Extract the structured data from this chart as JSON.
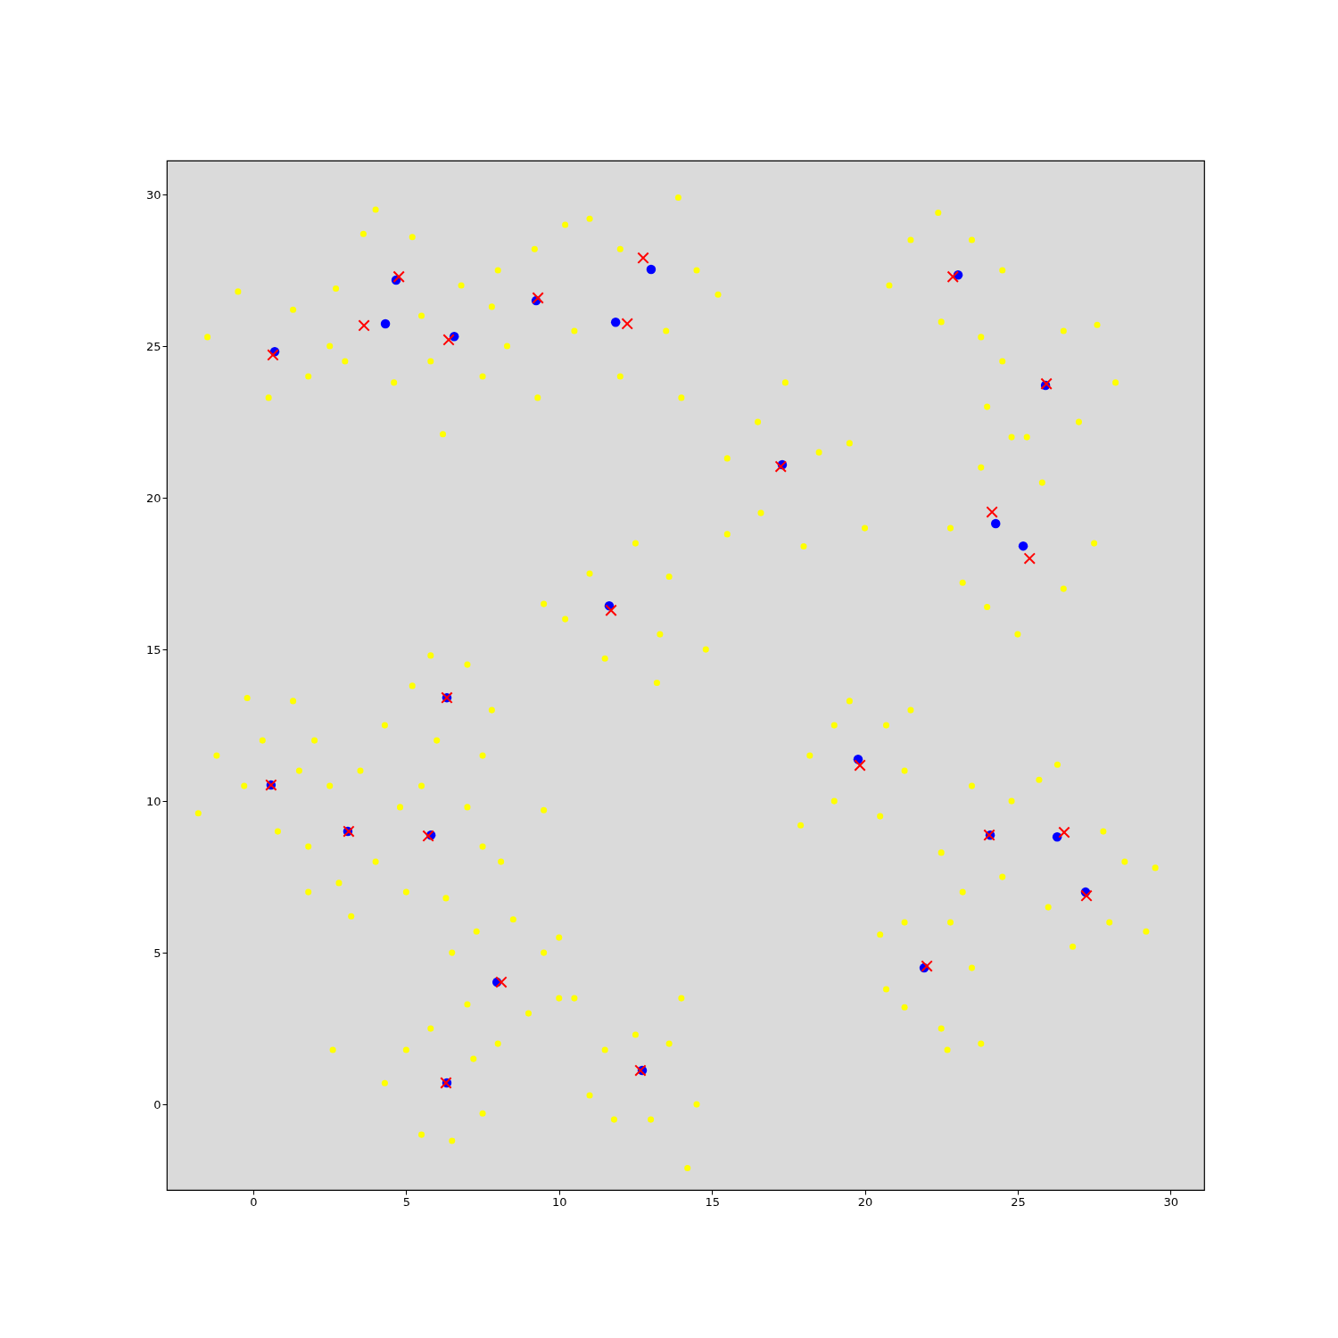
{
  "chart_data": {
    "type": "scatter",
    "xlim": [
      -2.83,
      31.1
    ],
    "ylim": [
      -2.82,
      31.12
    ],
    "xticks": [
      0,
      5,
      10,
      15,
      20,
      25,
      30
    ],
    "yticks": [
      0,
      5,
      10,
      15,
      20,
      25,
      30
    ],
    "grid": false,
    "series": [
      {
        "color": "#ffff00",
        "marker": "circle",
        "x": [
          -1.5,
          -0.5,
          0.5,
          1.8,
          1.3,
          2.5,
          2.7,
          3.6,
          4.0,
          5.2,
          3.0,
          5.5,
          4.6,
          6.2,
          7.5,
          6.8,
          7.8,
          5.8,
          8.0,
          9.2,
          10.2,
          9.3,
          10.5,
          8.3,
          11.0,
          12.0,
          13.9,
          14.5,
          12.0,
          13.5,
          15.2,
          14.0,
          21.5,
          22.4,
          23.5,
          24.5,
          22.5,
          23.8,
          20.8,
          24.5,
          26.5,
          27.6,
          27.0,
          25.3,
          24.0,
          28.2,
          15.5,
          16.5,
          17.4,
          16.6,
          18.5,
          19.5,
          20.0,
          15.5,
          18.0,
          22.8,
          23.8,
          24.8,
          23.2,
          25.0,
          26.5,
          27.5,
          25.8,
          24.0,
          10.2,
          11.0,
          12.5,
          13.6,
          13.3,
          11.5,
          14.8,
          13.2,
          9.5,
          5.2,
          5.8,
          7.0,
          7.8,
          6.0,
          7.5,
          4.3,
          -1.8,
          -1.2,
          -0.3,
          0.3,
          1.5,
          2.0,
          0.8,
          -0.2,
          1.3,
          1.8,
          2.5,
          3.5,
          4.0,
          2.8,
          3.2,
          1.8,
          4.8,
          5.5,
          7.0,
          7.5,
          5.0,
          6.3,
          8.1,
          9.5,
          18.2,
          19.0,
          19.5,
          20.7,
          21.3,
          20.5,
          19.0,
          17.9,
          21.5,
          22.5,
          23.5,
          24.8,
          25.7,
          26.3,
          27.8,
          28.5,
          29.2,
          28.0,
          26.0,
          24.5,
          23.2,
          26.8,
          29.5,
          20.5,
          21.3,
          22.8,
          23.5,
          22.5,
          21.3,
          22.7,
          20.7,
          23.8,
          6.5,
          7.3,
          8.5,
          9.5,
          10.0,
          9.0,
          7.0,
          8.0,
          10.0,
          4.3,
          5.0,
          5.5,
          6.5,
          7.2,
          7.5,
          5.8,
          2.6,
          11.0,
          11.5,
          12.5,
          13.6,
          14.5,
          14.2,
          13.0,
          11.8,
          14.0,
          10.5
        ],
        "values": [
          25.3,
          26.8,
          23.3,
          24.0,
          26.2,
          25.0,
          26.9,
          28.7,
          29.5,
          28.6,
          24.5,
          26.0,
          23.8,
          22.1,
          24.0,
          27.0,
          26.3,
          24.5,
          27.5,
          28.2,
          29.0,
          23.3,
          25.5,
          25.0,
          29.2,
          28.2,
          29.9,
          27.5,
          24.0,
          25.5,
          26.7,
          23.3,
          28.5,
          29.4,
          28.5,
          27.5,
          25.8,
          25.3,
          27.0,
          24.5,
          25.5,
          25.7,
          22.5,
          22.0,
          23.0,
          23.8,
          21.3,
          22.5,
          23.8,
          19.5,
          21.5,
          21.8,
          19.0,
          18.8,
          18.4,
          19.0,
          21.0,
          22.0,
          17.2,
          15.5,
          17.0,
          18.5,
          20.5,
          16.4,
          16.0,
          17.5,
          18.5,
          17.4,
          15.5,
          14.7,
          15.0,
          13.9,
          16.5,
          13.8,
          14.8,
          14.5,
          13.0,
          12.0,
          11.5,
          12.5,
          9.6,
          11.5,
          10.5,
          12.0,
          11.0,
          12.0,
          9.0,
          13.4,
          13.3,
          8.5,
          10.5,
          11.0,
          8.0,
          7.3,
          6.2,
          7.0,
          9.8,
          10.5,
          9.8,
          8.5,
          7.0,
          6.8,
          8.0,
          9.7,
          11.5,
          12.5,
          13.3,
          12.5,
          11.0,
          9.5,
          10.0,
          9.2,
          13.0,
          8.3,
          10.5,
          10.0,
          10.7,
          11.2,
          9.0,
          8.0,
          5.7,
          6.0,
          6.5,
          7.5,
          7.0,
          5.2,
          7.8,
          5.6,
          6.0,
          6.0,
          4.5,
          2.5,
          3.2,
          1.8,
          3.8,
          2.0,
          5.0,
          5.7,
          6.1,
          5.0,
          5.5,
          3.0,
          3.3,
          2.0,
          3.5,
          0.7,
          1.8,
          -1.0,
          -1.2,
          1.5,
          -0.3,
          2.5,
          1.8,
          0.3,
          1.8,
          2.3,
          2.0,
          0.0,
          -2.1,
          -0.5,
          -0.5,
          3.5,
          3.5
        ]
      },
      {
        "color": "#0000ff",
        "marker": "circle",
        "x": [
          0.7,
          4.32,
          4.67,
          6.57,
          9.25,
          11.85,
          13.01,
          23.05,
          25.91,
          17.3,
          24.28,
          25.18,
          11.64,
          6.33,
          0.58,
          3.09,
          5.81,
          19.78,
          24.1,
          26.29,
          27.22,
          21.94,
          7.97,
          6.33,
          12.72
        ],
        "values": [
          24.82,
          25.74,
          27.18,
          25.32,
          26.5,
          25.79,
          27.53,
          27.35,
          23.71,
          21.09,
          19.15,
          18.41,
          16.44,
          13.41,
          10.53,
          9.0,
          8.88,
          11.38,
          8.88,
          8.82,
          7.0,
          4.5,
          4.03,
          0.71,
          1.12
        ]
      },
      {
        "color": "#ff0000",
        "marker": "cross",
        "x": [
          0.64,
          3.62,
          4.76,
          6.39,
          9.31,
          12.23,
          12.75,
          22.88,
          25.94,
          17.25,
          24.16,
          25.39,
          11.7,
          6.33,
          0.58,
          3.12,
          5.72,
          19.84,
          24.07,
          26.52,
          27.25,
          22.03,
          8.11,
          6.3,
          12.66
        ],
        "values": [
          24.71,
          25.68,
          27.29,
          25.21,
          26.59,
          25.74,
          27.91,
          27.29,
          23.76,
          21.03,
          19.53,
          18.0,
          16.29,
          13.41,
          10.53,
          9.0,
          8.85,
          11.18,
          8.88,
          8.97,
          6.88,
          4.56,
          4.03,
          0.71,
          1.12
        ]
      }
    ]
  }
}
